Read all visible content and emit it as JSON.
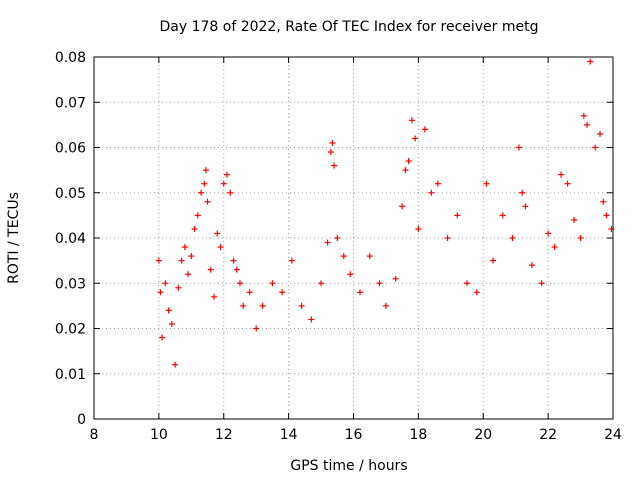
{
  "chart_data": {
    "type": "scatter",
    "title": "Day 178 of 2022, Rate Of TEC Index for receiver metg",
    "xlabel": "GPS time / hours",
    "ylabel": "ROTI / TECUs",
    "xlim": [
      8,
      24
    ],
    "ylim": [
      0,
      0.08
    ],
    "x_ticks": [
      "8",
      "10",
      "12",
      "14",
      "16",
      "18",
      "20",
      "22",
      "24"
    ],
    "y_ticks": [
      "0",
      "0.01",
      "0.02",
      "0.03",
      "0.04",
      "0.05",
      "0.06",
      "0.07",
      "0.08"
    ],
    "grid": true,
    "legend": "none",
    "marker": "plus",
    "series_color": "#ff0000",
    "points": [
      [
        10.0,
        0.035
      ],
      [
        10.05,
        0.028
      ],
      [
        10.1,
        0.018
      ],
      [
        10.2,
        0.03
      ],
      [
        10.3,
        0.024
      ],
      [
        10.4,
        0.021
      ],
      [
        10.5,
        0.012
      ],
      [
        10.6,
        0.029
      ],
      [
        10.7,
        0.035
      ],
      [
        10.8,
        0.038
      ],
      [
        10.9,
        0.032
      ],
      [
        11.0,
        0.036
      ],
      [
        11.1,
        0.042
      ],
      [
        11.2,
        0.045
      ],
      [
        11.3,
        0.05
      ],
      [
        11.4,
        0.052
      ],
      [
        11.45,
        0.055
      ],
      [
        11.5,
        0.048
      ],
      [
        11.6,
        0.033
      ],
      [
        11.7,
        0.027
      ],
      [
        11.8,
        0.041
      ],
      [
        11.9,
        0.038
      ],
      [
        12.0,
        0.052
      ],
      [
        12.1,
        0.054
      ],
      [
        12.2,
        0.05
      ],
      [
        12.3,
        0.035
      ],
      [
        12.4,
        0.033
      ],
      [
        12.5,
        0.03
      ],
      [
        12.6,
        0.025
      ],
      [
        12.8,
        0.028
      ],
      [
        13.0,
        0.02
      ],
      [
        13.2,
        0.025
      ],
      [
        13.5,
        0.03
      ],
      [
        13.8,
        0.028
      ],
      [
        14.1,
        0.035
      ],
      [
        14.4,
        0.025
      ],
      [
        14.7,
        0.022
      ],
      [
        15.0,
        0.03
      ],
      [
        15.2,
        0.039
      ],
      [
        15.3,
        0.059
      ],
      [
        15.35,
        0.061
      ],
      [
        15.4,
        0.056
      ],
      [
        15.5,
        0.04
      ],
      [
        15.7,
        0.036
      ],
      [
        15.9,
        0.032
      ],
      [
        16.2,
        0.028
      ],
      [
        16.5,
        0.036
      ],
      [
        16.8,
        0.03
      ],
      [
        17.0,
        0.025
      ],
      [
        17.3,
        0.031
      ],
      [
        17.5,
        0.047
      ],
      [
        17.6,
        0.055
      ],
      [
        17.7,
        0.057
      ],
      [
        17.8,
        0.066
      ],
      [
        17.9,
        0.062
      ],
      [
        18.0,
        0.042
      ],
      [
        18.2,
        0.064
      ],
      [
        18.4,
        0.05
      ],
      [
        18.6,
        0.052
      ],
      [
        18.9,
        0.04
      ],
      [
        19.2,
        0.045
      ],
      [
        19.5,
        0.03
      ],
      [
        19.8,
        0.028
      ],
      [
        20.1,
        0.052
      ],
      [
        20.3,
        0.035
      ],
      [
        20.6,
        0.045
      ],
      [
        20.9,
        0.04
      ],
      [
        21.1,
        0.06
      ],
      [
        21.2,
        0.05
      ],
      [
        21.3,
        0.047
      ],
      [
        21.5,
        0.034
      ],
      [
        21.8,
        0.03
      ],
      [
        22.0,
        0.041
      ],
      [
        22.2,
        0.038
      ],
      [
        22.4,
        0.054
      ],
      [
        22.6,
        0.052
      ],
      [
        22.8,
        0.044
      ],
      [
        23.0,
        0.04
      ],
      [
        23.1,
        0.067
      ],
      [
        23.2,
        0.065
      ],
      [
        23.3,
        0.079
      ],
      [
        23.45,
        0.06
      ],
      [
        23.6,
        0.063
      ],
      [
        23.7,
        0.048
      ],
      [
        23.8,
        0.045
      ],
      [
        23.95,
        0.042
      ]
    ]
  }
}
